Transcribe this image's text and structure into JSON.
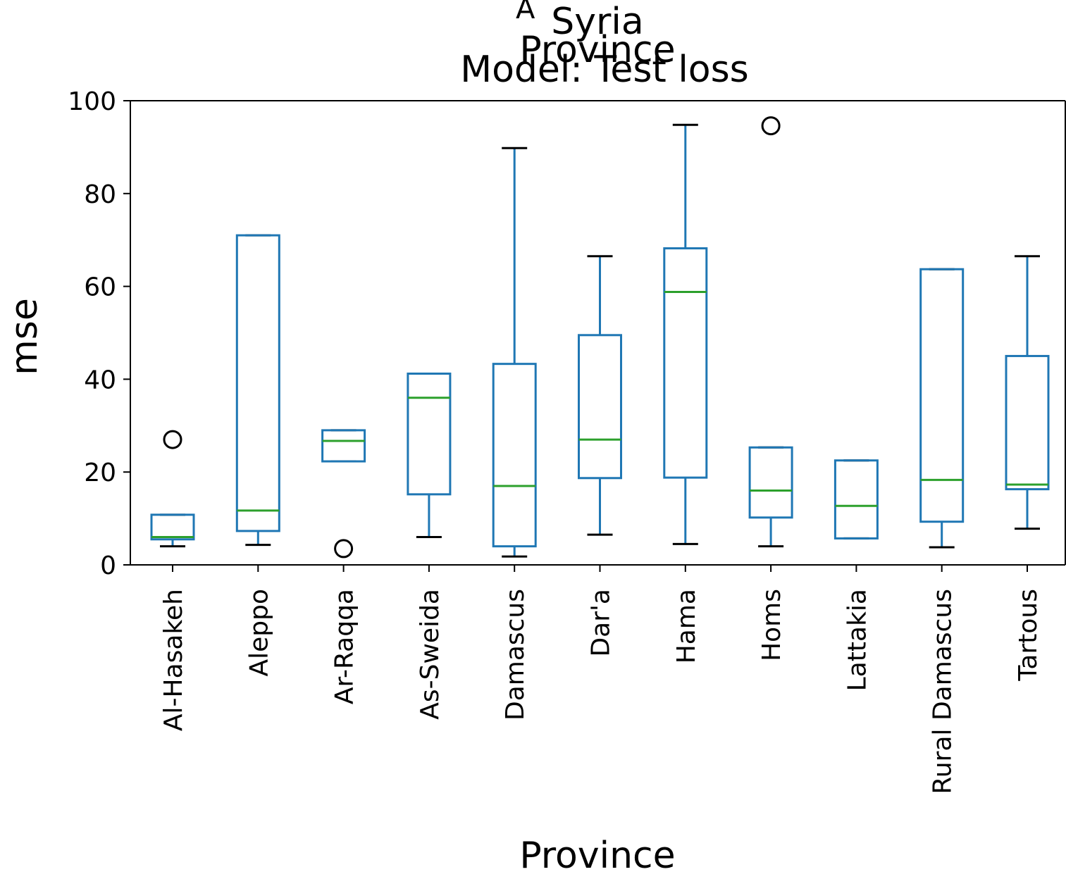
{
  "chart_data": {
    "type": "box",
    "title_lines": [
      "Syria",
      "Province",
      "Model: Test loss"
    ],
    "title_overlap_glyph": "A",
    "xlabel": "Province",
    "ylabel": "mse",
    "ylim": [
      0,
      100
    ],
    "yticks": [
      "0",
      "20",
      "40",
      "60",
      "80",
      "100"
    ],
    "grid": false,
    "categories": [
      "Al-Hasakeh",
      "Aleppo",
      "Ar-Raqqa",
      "As-Sweida",
      "Damascus",
      "Dar'a",
      "Hama",
      "Homs",
      "Lattakia",
      "Rural Damascus",
      "Tartous"
    ],
    "boxes": [
      {
        "category": "Al-Hasakeh",
        "whisker_low": 4,
        "q1": 5.5,
        "median": 6,
        "q3": 10.8,
        "whisker_high": 10.8,
        "outliers": [
          27
        ]
      },
      {
        "category": "Aleppo",
        "whisker_low": 4.3,
        "q1": 7.3,
        "median": 11.7,
        "q3": 71,
        "whisker_high": 71,
        "outliers": []
      },
      {
        "category": "Ar-Raqqa",
        "whisker_low": 22.3,
        "q1": 22.3,
        "median": 26.7,
        "q3": 29,
        "whisker_high": 29,
        "outliers": [
          3.5
        ]
      },
      {
        "category": "As-Sweida",
        "whisker_low": 6,
        "q1": 15.2,
        "median": 36,
        "q3": 41.2,
        "whisker_high": 41.2,
        "outliers": []
      },
      {
        "category": "Damascus",
        "whisker_low": 1.8,
        "q1": 4,
        "median": 17,
        "q3": 43.3,
        "whisker_high": 89.8,
        "outliers": []
      },
      {
        "category": "Dar'a",
        "whisker_low": 6.5,
        "q1": 18.7,
        "median": 27,
        "q3": 49.5,
        "whisker_high": 66.5,
        "outliers": []
      },
      {
        "category": "Hama",
        "whisker_low": 4.5,
        "q1": 18.8,
        "median": 58.8,
        "q3": 68.2,
        "whisker_high": 94.8,
        "outliers": []
      },
      {
        "category": "Homs",
        "whisker_low": 4,
        "q1": 10.2,
        "median": 16,
        "q3": 25.3,
        "whisker_high": 25.3,
        "outliers": [
          94.6
        ]
      },
      {
        "category": "Lattakia",
        "whisker_low": 5.7,
        "q1": 5.7,
        "median": 12.7,
        "q3": 22.5,
        "whisker_high": 22.5,
        "outliers": []
      },
      {
        "category": "Rural Damascus",
        "whisker_low": 3.8,
        "q1": 9.3,
        "median": 18.3,
        "q3": 63.7,
        "whisker_high": 63.7,
        "outliers": []
      },
      {
        "category": "Tartous",
        "whisker_low": 7.8,
        "q1": 16.3,
        "median": 17.3,
        "q3": 45,
        "whisker_high": 66.5,
        "outliers": []
      }
    ],
    "colors": {
      "box": "#1f77b4",
      "median": "#2ca02c",
      "whisker_cap": "#000000",
      "outlier": "#000000"
    }
  }
}
